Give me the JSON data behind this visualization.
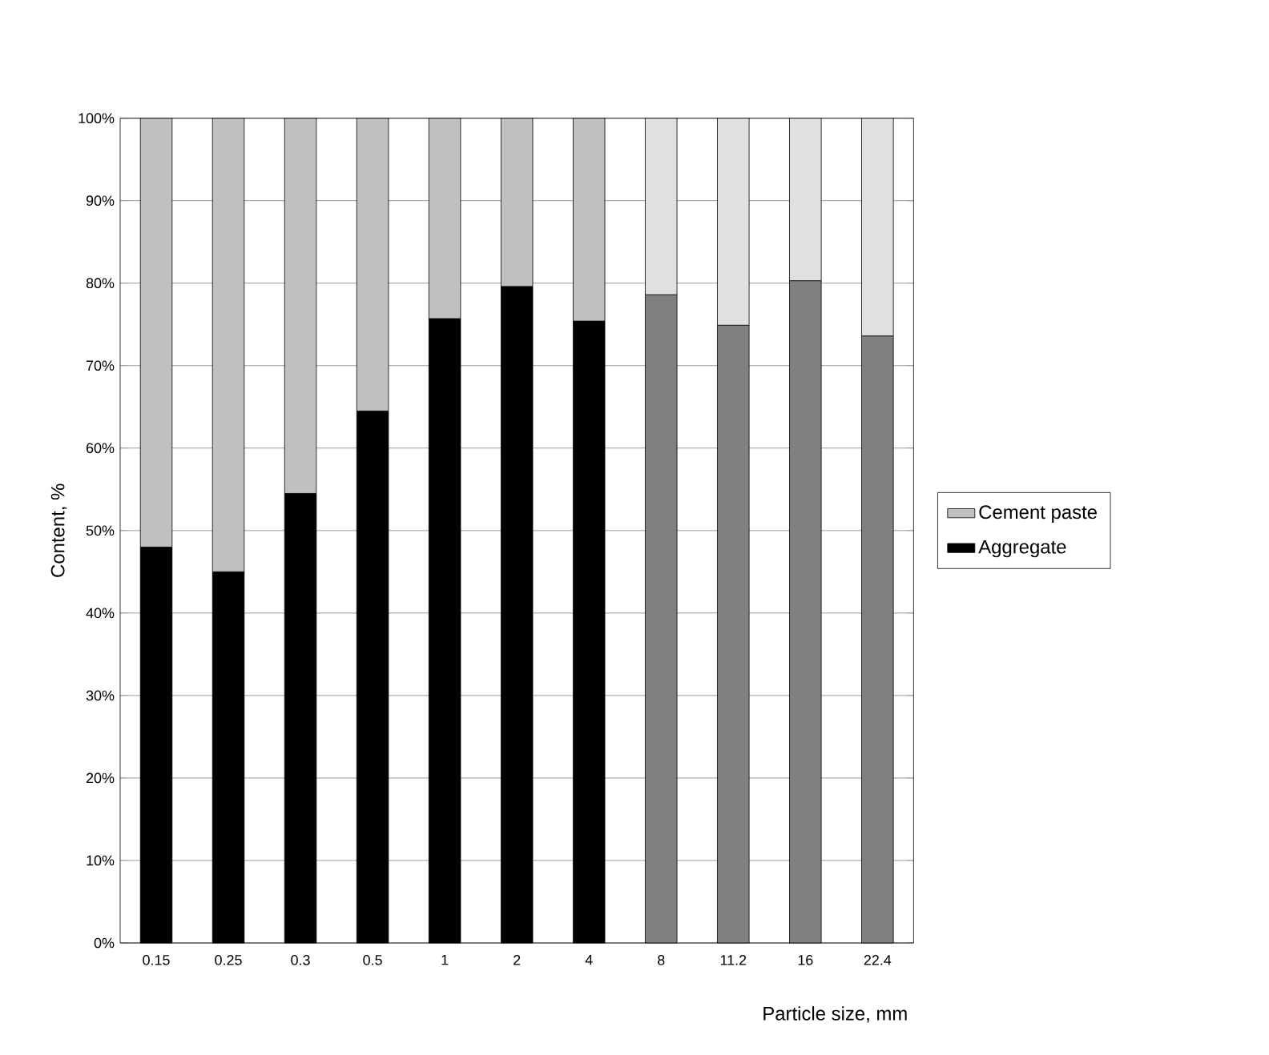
{
  "chart_data": {
    "type": "bar",
    "stacked": true,
    "xlabel": "Particle size, mm",
    "ylabel": "Content, %",
    "categories": [
      "0.15",
      "0.25",
      "0.3",
      "0.5",
      "1",
      "2",
      "4",
      "8",
      "11.2",
      "16",
      "22.4"
    ],
    "series": [
      {
        "name": "Aggregate",
        "colors": [
          "#000000",
          "#000000",
          "#000000",
          "#000000",
          "#000000",
          "#000000",
          "#000000",
          "#808080",
          "#808080",
          "#808080",
          "#808080"
        ],
        "values": [
          48,
          45,
          54.5,
          64.5,
          75.7,
          79.6,
          75.4,
          78.6,
          74.9,
          80.3,
          73.6
        ]
      },
      {
        "name": "Cement paste",
        "colors": [
          "#c0c0c0",
          "#c0c0c0",
          "#c0c0c0",
          "#c0c0c0",
          "#c0c0c0",
          "#c0c0c0",
          "#c0c0c0",
          "#e0e0e0",
          "#e0e0e0",
          "#e0e0e0",
          "#e0e0e0"
        ],
        "values": [
          52,
          55,
          45.5,
          35.5,
          24.3,
          20.4,
          24.6,
          21.4,
          25.1,
          19.7,
          26.4
        ]
      }
    ],
    "ylim": [
      0,
      100
    ],
    "yticks": [
      {
        "value": 0,
        "label": "0%"
      },
      {
        "value": 10,
        "label": "10%"
      },
      {
        "value": 20,
        "label": "20%"
      },
      {
        "value": 30,
        "label": "30%"
      },
      {
        "value": 40,
        "label": "40%"
      },
      {
        "value": 50,
        "label": "50%"
      },
      {
        "value": 60,
        "label": "60%"
      },
      {
        "value": 70,
        "label": "70%"
      },
      {
        "value": 80,
        "label": "80%"
      },
      {
        "value": 90,
        "label": "90%"
      },
      {
        "value": 100,
        "label": "100%"
      }
    ],
    "grid": "y",
    "legend": "right"
  }
}
